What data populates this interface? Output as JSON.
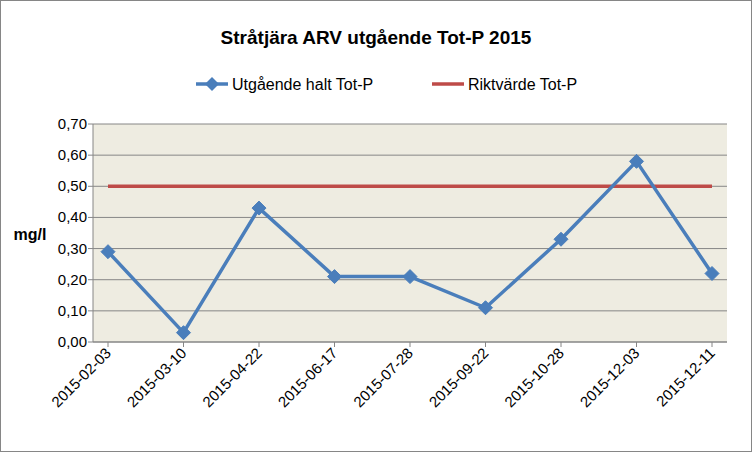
{
  "chart_data": {
    "type": "line",
    "title": "Stråtjära ARV utgående Tot-P 2015",
    "y_label": "mg/l",
    "categories": [
      "2015-02-03",
      "2015-03-10",
      "2015-04-22",
      "2015-06-17",
      "2015-07-28",
      "2015-09-22",
      "2015-10-28",
      "2015-12-03",
      "2015-12-11"
    ],
    "series": [
      {
        "name": "Utgående halt Tot-P",
        "color": "#4a7ebb",
        "marker": "diamond",
        "line_style": "solid",
        "values": [
          0.29,
          0.03,
          0.43,
          0.21,
          0.21,
          0.11,
          0.33,
          0.58,
          0.22
        ]
      },
      {
        "name": "Riktvärde Tot-P",
        "color": "#be4b48",
        "marker": "none",
        "line_style": "solid",
        "values": [
          0.5,
          0.5,
          0.5,
          0.5,
          0.5,
          0.5,
          0.5,
          0.5,
          0.5
        ]
      }
    ],
    "ylim": [
      0,
      0.7
    ],
    "yticks": [
      {
        "value": 0,
        "label": "0,00"
      },
      {
        "value": 0.1,
        "label": "0,10"
      },
      {
        "value": 0.2,
        "label": "0,20"
      },
      {
        "value": 0.3,
        "label": "0,30"
      },
      {
        "value": 0.4,
        "label": "0,40"
      },
      {
        "value": 0.5,
        "label": "0,50"
      },
      {
        "value": 0.6,
        "label": "0,60"
      },
      {
        "value": 0.7,
        "label": "0,70"
      }
    ],
    "grid": true,
    "legend": "top"
  }
}
